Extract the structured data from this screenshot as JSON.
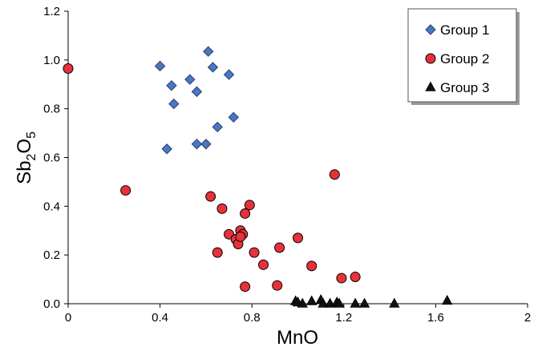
{
  "chart_data": {
    "type": "scatter",
    "xlabel": "MnO",
    "ylabel": {
      "base": "Sb",
      "sub1": "2",
      "mid": "O",
      "sub2": "5"
    },
    "xlim": [
      0,
      2
    ],
    "ylim": [
      0,
      1.2
    ],
    "x_ticks": [
      "0",
      "0.4",
      "0.8",
      "1.2",
      "1.6",
      "2"
    ],
    "x_tick_values": [
      0,
      0.4,
      0.8,
      1.2,
      1.6,
      2
    ],
    "y_ticks": [
      "0.0",
      "0.2",
      "0.4",
      "0.6",
      "0.8",
      "1.0",
      "1.2"
    ],
    "y_tick_values": [
      0,
      0.2,
      0.4,
      0.6,
      0.8,
      1.0,
      1.2
    ],
    "grid": false,
    "legend_position": "top-right",
    "series": [
      {
        "name": "Group 1",
        "marker": "diamond",
        "color": "#4a76c2",
        "points": [
          [
            0.4,
            0.975
          ],
          [
            0.61,
            1.035
          ],
          [
            0.45,
            0.895
          ],
          [
            0.53,
            0.92
          ],
          [
            0.63,
            0.97
          ],
          [
            0.7,
            0.94
          ],
          [
            0.56,
            0.87
          ],
          [
            0.46,
            0.82
          ],
          [
            0.72,
            0.765
          ],
          [
            0.65,
            0.725
          ],
          [
            0.43,
            0.635
          ],
          [
            0.56,
            0.655
          ],
          [
            0.6,
            0.655
          ]
        ]
      },
      {
        "name": "Group 2",
        "marker": "circle",
        "color": "#e8313a",
        "points": [
          [
            0.0,
            0.965
          ],
          [
            0.25,
            0.465
          ],
          [
            0.62,
            0.44
          ],
          [
            0.67,
            0.39
          ],
          [
            0.79,
            0.405
          ],
          [
            0.77,
            0.37
          ],
          [
            0.7,
            0.285
          ],
          [
            0.73,
            0.265
          ],
          [
            0.75,
            0.3
          ],
          [
            0.76,
            0.285
          ],
          [
            0.74,
            0.245
          ],
          [
            0.75,
            0.275
          ],
          [
            0.65,
            0.21
          ],
          [
            0.81,
            0.21
          ],
          [
            0.85,
            0.16
          ],
          [
            0.92,
            0.23
          ],
          [
            1.0,
            0.27
          ],
          [
            1.06,
            0.155
          ],
          [
            1.16,
            0.53
          ],
          [
            0.91,
            0.075
          ],
          [
            0.77,
            0.07
          ],
          [
            1.19,
            0.105
          ],
          [
            1.25,
            0.11
          ]
        ]
      },
      {
        "name": "Group 3",
        "marker": "triangle",
        "color": "#111111",
        "points": [
          [
            0.99,
            0.01
          ],
          [
            1.0,
            0.005
          ],
          [
            1.02,
            0.0
          ],
          [
            1.06,
            0.01
          ],
          [
            1.1,
            0.015
          ],
          [
            1.11,
            0.0
          ],
          [
            1.14,
            0.0
          ],
          [
            1.17,
            0.005
          ],
          [
            1.18,
            0.0
          ],
          [
            1.25,
            0.0
          ],
          [
            1.29,
            0.0
          ],
          [
            1.42,
            0.0
          ],
          [
            1.65,
            0.012
          ]
        ]
      }
    ]
  }
}
